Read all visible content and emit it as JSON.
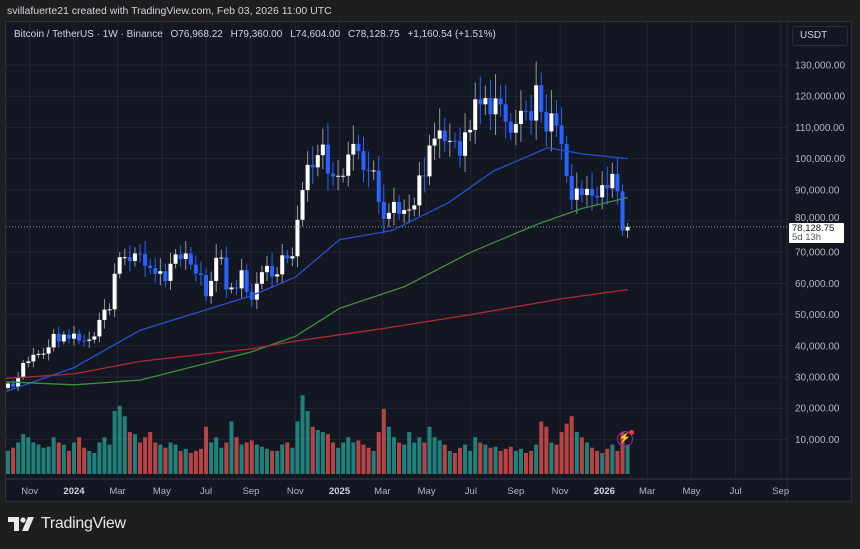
{
  "header": {
    "credit": "svillafuerte21 created with TradingView.com, Feb 03, 2026 11:00 UTC"
  },
  "legend": {
    "symbol": "Bitcoin / TetherUS · 1W · Binance",
    "open": "O76,968.22",
    "high": "H79,360.00",
    "low": "L74,604.00",
    "close": "C78,128.75",
    "change": "+1,160.54 (+1.51%)"
  },
  "price_scale": {
    "unit": "USDT",
    "ticks": [
      "130,000.00",
      "120,000.00",
      "110,000.00",
      "100,000.00",
      "90,000.00",
      "80,000.00",
      "70,000.00",
      "60,000.00",
      "50,000.00",
      "40,000.00",
      "30,000.00",
      "20,000.00",
      "10,000.00"
    ],
    "last_price": "78,128.75",
    "countdown": "5d 13h"
  },
  "time_scale": {
    "labels": [
      [
        "Nov",
        "2023-11-01",
        false
      ],
      [
        "2024",
        "2024-01-01",
        true
      ],
      [
        "Mar",
        "2024-03-01",
        false
      ],
      [
        "May",
        "2024-05-01",
        false
      ],
      [
        "Jul",
        "2024-07-01",
        false
      ],
      [
        "Sep",
        "2024-09-01",
        false
      ],
      [
        "Nov",
        "2024-11-01",
        false
      ],
      [
        "2025",
        "2025-01-01",
        true
      ],
      [
        "Mar",
        "2025-03-01",
        false
      ],
      [
        "May",
        "2025-05-01",
        false
      ],
      [
        "Jul",
        "2025-07-01",
        false
      ],
      [
        "Sep",
        "2025-09-01",
        false
      ],
      [
        "Nov",
        "2025-11-01",
        false
      ],
      [
        "2026",
        "2026-01-01",
        true
      ],
      [
        "Mar",
        "2026-03-01",
        false
      ],
      [
        "May",
        "2026-05-01",
        false
      ],
      [
        "Jul",
        "2026-07-01",
        false
      ],
      [
        "Sep",
        "2026-09-01",
        false
      ]
    ]
  },
  "footer": {
    "brand": "TradingView"
  },
  "colors": {
    "up_candle": "#ffffff",
    "down_candle": "#2962ff",
    "up_volume": "#26a69a",
    "down_volume": "#ef5350",
    "ma_fast": "#2a4fd0",
    "ma_mid": "#3f8f3f",
    "ma_slow": "#b22a35",
    "background": "#131722",
    "grid": "#232734"
  },
  "icons": {
    "alert": "lightning-icon",
    "logo": "tradingview-logo"
  },
  "chart_data": {
    "type": "candlestick",
    "interval": "1W",
    "start_week": "2023-10-02",
    "ylim": [
      0,
      140000
    ],
    "grid": true,
    "close": [
      27900,
      26900,
      29900,
      34500,
      35000,
      37100,
      37400,
      37500,
      39500,
      43800,
      41400,
      43600,
      42300,
      43900,
      41700,
      41600,
      42000,
      43000,
      48300,
      51600,
      51700,
      63100,
      68400,
      68400,
      67200,
      69600,
      69400,
      65700,
      64900,
      63100,
      63900,
      60800,
      66300,
      69300,
      67800,
      69600,
      66000,
      63200,
      62700,
      55900,
      60800,
      68200,
      68300,
      58100,
      58700,
      58400,
      64200,
      57300,
      54800,
      59900,
      63600,
      65600,
      62200,
      62900,
      69000,
      68000,
      68700,
      80400,
      89900,
      98000,
      97200,
      101100,
      104500,
      95200,
      94300,
      94500,
      94500,
      101300,
      104700,
      102400,
      96400,
      96100,
      96200,
      86100,
      80700,
      82600,
      86100,
      82300,
      83500,
      83700,
      85000,
      94600,
      94300,
      104200,
      106400,
      109000,
      105600,
      105700,
      105600,
      100900,
      108400,
      109200,
      119000,
      117400,
      119400,
      114200,
      119300,
      117400,
      111800,
      108300,
      111100,
      115300,
      115200,
      112200,
      123500,
      115000,
      108700,
      114500,
      110600,
      104700,
      94400,
      86800,
      90400,
      88300,
      90300,
      88100,
      87600,
      91500,
      90500,
      95100,
      89500,
      76968.22,
      78128.75
    ],
    "last_candle": {
      "open": 76968.22,
      "high": 79360,
      "low": 74604,
      "close": 78128.75
    },
    "first_open": 26500,
    "volume_relative": [
      22,
      25,
      30,
      38,
      35,
      30,
      28,
      25,
      26,
      35,
      30,
      28,
      22,
      30,
      35,
      25,
      22,
      20,
      30,
      35,
      28,
      60,
      65,
      55,
      40,
      38,
      30,
      35,
      40,
      30,
      28,
      25,
      30,
      28,
      22,
      24,
      20,
      22,
      24,
      45,
      30,
      35,
      25,
      30,
      50,
      35,
      28,
      30,
      32,
      28,
      26,
      24,
      22,
      22,
      28,
      30,
      25,
      50,
      75,
      60,
      45,
      42,
      40,
      38,
      30,
      25,
      30,
      35,
      30,
      32,
      28,
      25,
      22,
      40,
      62,
      45,
      35,
      30,
      28,
      40,
      30,
      35,
      30,
      45,
      35,
      32,
      28,
      22,
      20,
      25,
      28,
      22,
      35,
      30,
      28,
      25,
      26,
      22,
      24,
      26,
      22,
      24,
      20,
      22,
      28,
      50,
      45,
      30,
      28,
      40,
      48,
      55,
      40,
      35,
      30,
      25,
      22,
      20,
      24,
      28,
      22,
      40,
      28
    ],
    "moving_averages": [
      {
        "color": "#2a4fd0",
        "points": [
          [
            "2023-09-25",
            25000
          ],
          [
            "2024-01-01",
            33000
          ],
          [
            "2024-04-01",
            45000
          ],
          [
            "2024-09-01",
            56000
          ],
          [
            "2024-11-01",
            62000
          ],
          [
            "2025-01-01",
            74000
          ],
          [
            "2025-03-15",
            77000
          ],
          [
            "2025-06-01",
            86000
          ],
          [
            "2025-08-01",
            96000
          ],
          [
            "2025-10-15",
            103500
          ],
          [
            "2025-12-01",
            101500
          ],
          [
            "2026-02-02",
            100000
          ]
        ]
      },
      {
        "color": "#3f8f3f",
        "points": [
          [
            "2023-09-25",
            28500
          ],
          [
            "2024-01-01",
            27500
          ],
          [
            "2024-04-01",
            29000
          ],
          [
            "2024-09-01",
            38000
          ],
          [
            "2024-11-01",
            43000
          ],
          [
            "2025-01-01",
            52000
          ],
          [
            "2025-04-01",
            59000
          ],
          [
            "2025-07-01",
            70000
          ],
          [
            "2025-10-01",
            79000
          ],
          [
            "2025-12-01",
            84000
          ],
          [
            "2026-02-02",
            87500
          ]
        ]
      },
      {
        "color": "#b22a35",
        "points": [
          [
            "2023-09-25",
            29500
          ],
          [
            "2024-01-01",
            31000
          ],
          [
            "2024-04-01",
            35000
          ],
          [
            "2024-09-01",
            39000
          ],
          [
            "2024-11-01",
            41500
          ],
          [
            "2025-03-01",
            45500
          ],
          [
            "2025-07-01",
            50000
          ],
          [
            "2025-11-01",
            55000
          ],
          [
            "2026-02-02",
            58000
          ]
        ]
      }
    ]
  }
}
